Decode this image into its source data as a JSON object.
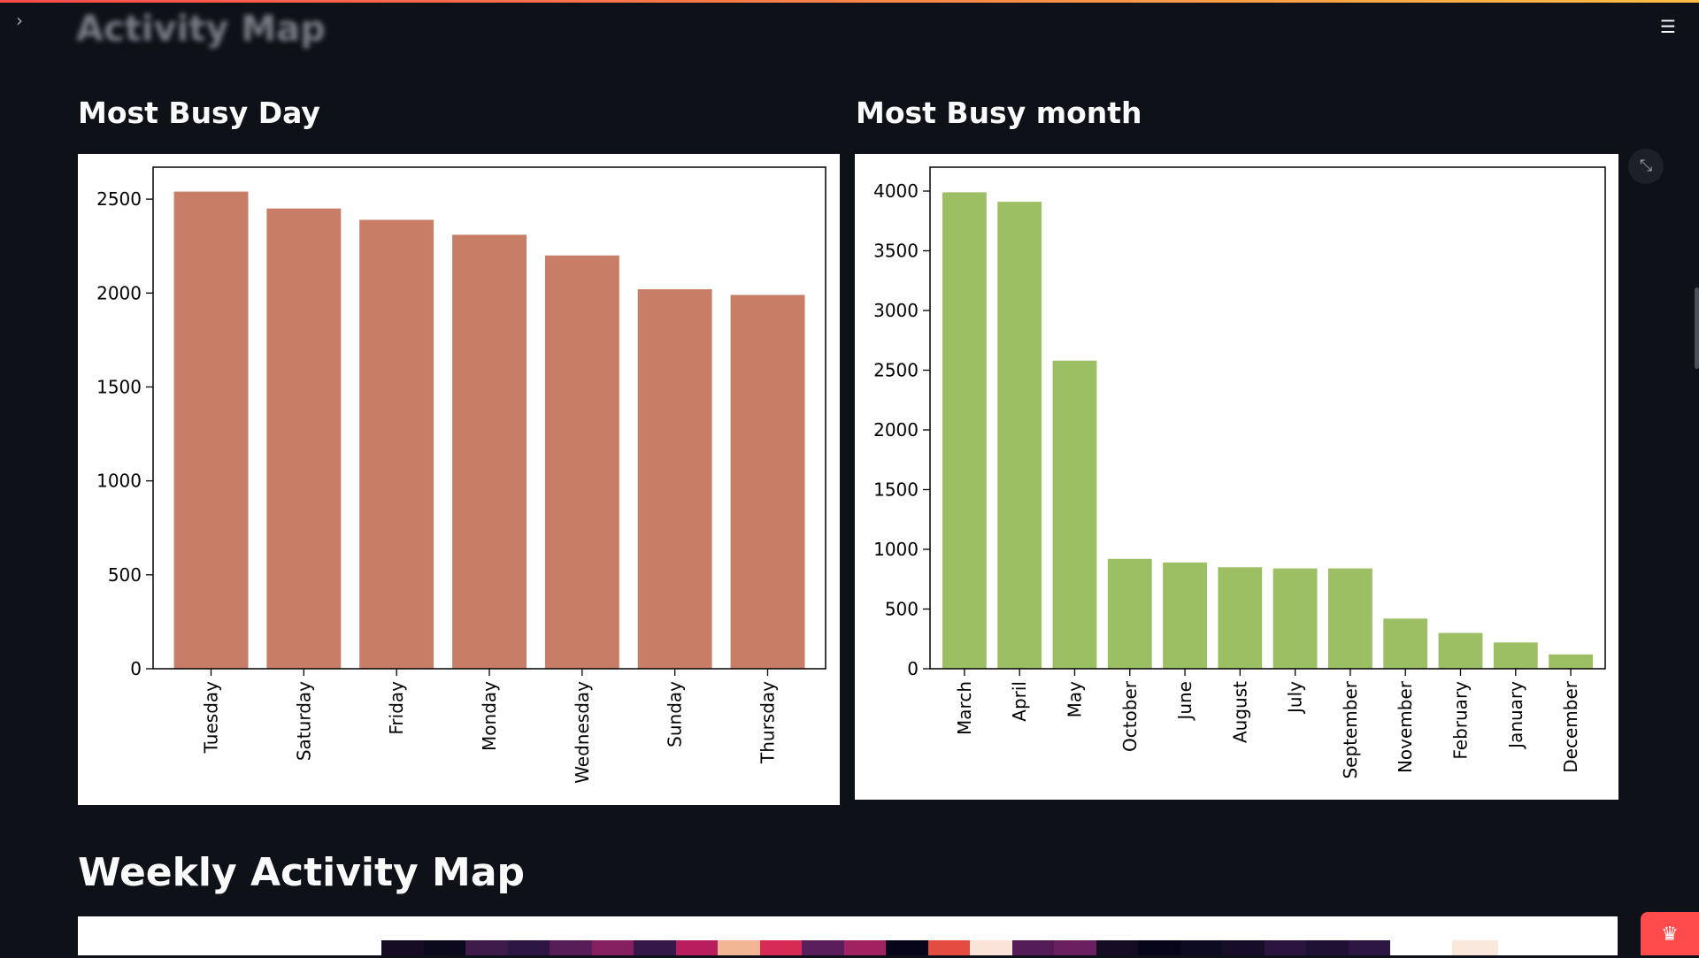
{
  "app": {
    "faded_title": "Activity Map"
  },
  "icons": {
    "sidebar_toggle": "chevron-right-icon",
    "menu": "hamburger-menu-icon",
    "fullscreen": "expand-icon",
    "badge": "crown-icon"
  },
  "sections": {
    "day_title": "Most Busy Day",
    "month_title": "Most Busy month",
    "weekly_title": "Weekly Activity Map"
  },
  "chart_data": [
    {
      "type": "bar",
      "categories": [
        "Tuesday",
        "Saturday",
        "Friday",
        "Monday",
        "Wednesday",
        "Sunday",
        "Thursday"
      ],
      "values": [
        2540,
        2450,
        2390,
        2310,
        2200,
        2020,
        1990
      ],
      "ylim": [
        0,
        2670
      ],
      "yticks": [
        0,
        500,
        1000,
        1500,
        2000,
        2500
      ],
      "title": "",
      "xlabel": "",
      "ylabel": "",
      "color": "#c87d67",
      "grid": false
    },
    {
      "type": "bar",
      "categories": [
        "March",
        "April",
        "May",
        "October",
        "June",
        "August",
        "July",
        "September",
        "November",
        "February",
        "January",
        "December"
      ],
      "values": [
        3990,
        3910,
        2580,
        920,
        890,
        850,
        840,
        840,
        420,
        300,
        220,
        120
      ],
      "ylim": [
        0,
        4200
      ],
      "yticks": [
        0,
        500,
        1000,
        1500,
        2000,
        2500,
        3000,
        3500,
        4000
      ],
      "title": "",
      "xlabel": "",
      "ylabel": "",
      "color": "#9bbf62",
      "grid": false
    }
  ],
  "heatmap_preview": {
    "colors": [
      "#140d24",
      "#0b0a1d",
      "#3c1a4a",
      "#2c1543",
      "#571d58",
      "#861f60",
      "#35174a",
      "#b81d5d",
      "#f3b694",
      "#d72b55",
      "#5a1e5c",
      "#a12260",
      "#07051a",
      "#e54c41",
      "#fae3d8",
      "#531b58",
      "#6a2060",
      "#140d24",
      "#07051a",
      "#0d0b21",
      "#160d28",
      "#2a1440",
      "#1e1133",
      "#2c1543"
    ],
    "extra_color": "#fae8dc"
  },
  "badge": {
    "label": "♛"
  }
}
